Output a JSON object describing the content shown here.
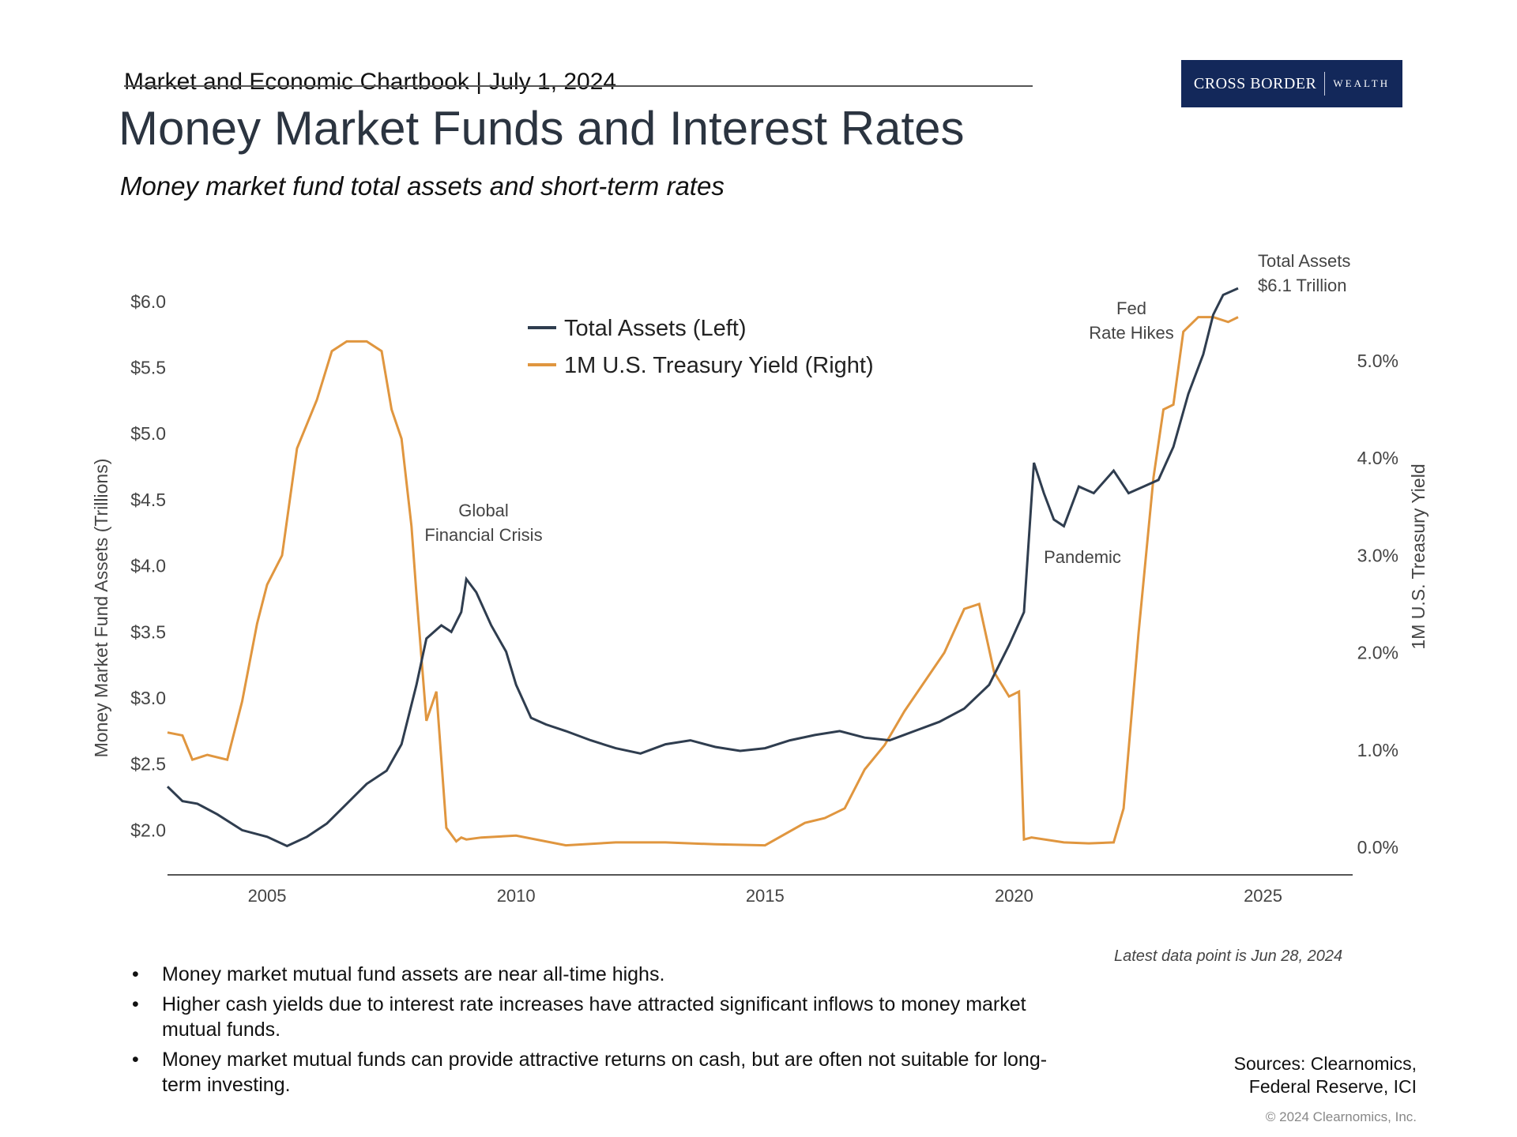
{
  "header": {
    "text": "Market and Economic Chartbook | July 1, 2024",
    "logo_main": "CROSS BORDER",
    "logo_sub": "WEALTH",
    "title": "Money Market Funds and Interest Rates",
    "subtitle": "Money market fund total assets and short-term rates"
  },
  "chart_data": {
    "type": "line",
    "title": "Money Market Funds and Interest Rates",
    "xlim": [
      2003,
      2026.8
    ],
    "x_ticks": [
      "2005",
      "2010",
      "2015",
      "2020",
      "2025"
    ],
    "y_left": {
      "label": "Money Market Fund Assets (Trillions)",
      "lim": [
        1.65,
        6.25
      ],
      "ticks": [
        2.0,
        2.5,
        3.0,
        3.5,
        4.0,
        4.5,
        5.0,
        5.5,
        6.0
      ],
      "tick_labels": [
        "$2.0",
        "$2.5",
        "$3.0",
        "$3.5",
        "$4.0",
        "$4.5",
        "$5.0",
        "$5.5",
        "$6.0"
      ]
    },
    "y_right": {
      "label": "1M U.S. Treasury Yield",
      "lim": [
        -0.3,
        5.95
      ],
      "ticks": [
        0,
        1,
        2,
        3,
        4,
        5
      ],
      "tick_labels": [
        "0.0%",
        "1.0%",
        "2.0%",
        "3.0%",
        "4.0%",
        "5.0%"
      ]
    },
    "legend": [
      "Total Assets (Left)",
      "1M U.S. Treasury Yield (Right)"
    ],
    "colors": {
      "assets": "#2f3d4f",
      "yield": "#e0963f",
      "axis": "#555555"
    },
    "series": [
      {
        "name": "Total Assets (Left)",
        "axis": "left",
        "x": [
          2003.0,
          2003.3,
          2003.6,
          2004.0,
          2004.5,
          2005.0,
          2005.4,
          2005.8,
          2006.2,
          2006.6,
          2007.0,
          2007.4,
          2007.7,
          2008.0,
          2008.2,
          2008.5,
          2008.7,
          2008.9,
          2009.0,
          2009.2,
          2009.5,
          2009.8,
          2010.0,
          2010.3,
          2010.6,
          2011.0,
          2011.5,
          2012.0,
          2012.5,
          2013.0,
          2013.5,
          2014.0,
          2014.5,
          2015.0,
          2015.5,
          2016.0,
          2016.5,
          2017.0,
          2017.5,
          2018.0,
          2018.5,
          2019.0,
          2019.5,
          2019.9,
          2020.2,
          2020.4,
          2020.6,
          2020.8,
          2021.0,
          2021.3,
          2021.6,
          2022.0,
          2022.3,
          2022.6,
          2022.9,
          2023.2,
          2023.5,
          2023.8,
          2024.0,
          2024.2,
          2024.5
        ],
        "values": [
          2.33,
          2.22,
          2.2,
          2.12,
          2.0,
          1.95,
          1.88,
          1.95,
          2.05,
          2.2,
          2.35,
          2.45,
          2.65,
          3.1,
          3.45,
          3.55,
          3.5,
          3.65,
          3.9,
          3.8,
          3.55,
          3.35,
          3.1,
          2.85,
          2.8,
          2.75,
          2.68,
          2.62,
          2.58,
          2.65,
          2.68,
          2.63,
          2.6,
          2.62,
          2.68,
          2.72,
          2.75,
          2.7,
          2.68,
          2.75,
          2.82,
          2.92,
          3.1,
          3.4,
          3.65,
          4.78,
          4.55,
          4.35,
          4.3,
          4.6,
          4.55,
          4.72,
          4.55,
          4.6,
          4.65,
          4.9,
          5.3,
          5.6,
          5.9,
          6.05,
          6.1
        ]
      },
      {
        "name": "1M U.S. Treasury Yield (Right)",
        "axis": "right",
        "x": [
          2003.0,
          2003.3,
          2003.5,
          2003.8,
          2004.2,
          2004.5,
          2004.8,
          2005.0,
          2005.3,
          2005.6,
          2006.0,
          2006.3,
          2006.6,
          2007.0,
          2007.3,
          2007.5,
          2007.7,
          2007.9,
          2008.0,
          2008.2,
          2008.4,
          2008.6,
          2008.8,
          2008.9,
          2009.0,
          2009.3,
          2010.0,
          2011.0,
          2012.0,
          2013.0,
          2014.0,
          2015.0,
          2015.8,
          2016.2,
          2016.6,
          2017.0,
          2017.4,
          2017.8,
          2018.2,
          2018.6,
          2019.0,
          2019.3,
          2019.6,
          2019.9,
          2020.1,
          2020.2,
          2020.35,
          2021.0,
          2021.5,
          2022.0,
          2022.2,
          2022.5,
          2022.8,
          2023.0,
          2023.2,
          2023.4,
          2023.7,
          2024.0,
          2024.3,
          2024.5
        ],
        "values": [
          1.18,
          1.15,
          0.9,
          0.95,
          0.9,
          1.5,
          2.3,
          2.7,
          3.0,
          4.1,
          4.6,
          5.1,
          5.2,
          5.2,
          5.1,
          4.5,
          4.2,
          3.3,
          2.6,
          1.3,
          1.6,
          0.2,
          0.06,
          0.1,
          0.08,
          0.1,
          0.12,
          0.02,
          0.05,
          0.05,
          0.03,
          0.02,
          0.25,
          0.3,
          0.4,
          0.8,
          1.05,
          1.4,
          1.7,
          2.0,
          2.45,
          2.5,
          1.8,
          1.55,
          1.6,
          0.08,
          0.1,
          0.05,
          0.04,
          0.05,
          0.4,
          2.2,
          3.8,
          4.5,
          4.55,
          5.3,
          5.45,
          5.45,
          5.4,
          5.45
        ]
      }
    ],
    "annotations": {
      "gfc": [
        "Global",
        "Financial Crisis"
      ],
      "pandemic": "Pandemic",
      "fed": [
        "Fed",
        "Rate Hikes"
      ],
      "total": [
        "Total Assets",
        "$6.1 Trillion"
      ]
    }
  },
  "footnote": "Latest data point is Jun 28, 2024",
  "bullets": [
    "Money market mutual fund assets are near all-time highs.",
    "Higher cash yields due to interest rate increases have attracted significant inflows to money market mutual funds.",
    "Money market mutual funds can provide attractive returns on cash, but are often not suitable for long-term investing."
  ],
  "sources": [
    "Sources: Clearnomics,",
    "Federal Reserve, ICI"
  ],
  "copyright": "© 2024 Clearnomics, Inc."
}
